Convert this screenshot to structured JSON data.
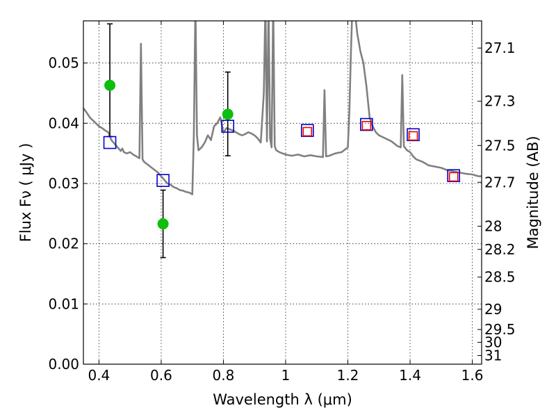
{
  "chart_data": {
    "type": "scatter",
    "xlabel": "Wavelength  λ (μm)",
    "ylabel": "Flux  Fν  ( μJy )",
    "ylabel_right": "Magnitude (AB)",
    "xlim": [
      0.35,
      1.63
    ],
    "ylim": [
      0.0,
      0.057
    ],
    "grid": true,
    "x_ticks": [
      0.4,
      0.6,
      0.8,
      1.0,
      1.2,
      1.4,
      1.6
    ],
    "x_tick_labels": [
      "0.4",
      "0.6",
      "0.8",
      "1",
      "1.2",
      "1.4",
      "1.6"
    ],
    "y_ticks": [
      0.0,
      0.01,
      0.02,
      0.03,
      0.04,
      0.05
    ],
    "y_tick_labels": [
      "0.00",
      "0.01",
      "0.02",
      "0.03",
      "0.04",
      "0.05"
    ],
    "right_ticks": [
      {
        "mag": 27.1,
        "label": "27.1"
      },
      {
        "mag": 27.3,
        "label": "27.3"
      },
      {
        "mag": 27.5,
        "label": "27.5"
      },
      {
        "mag": 27.7,
        "label": "27.7"
      },
      {
        "mag": 28.0,
        "label": "28"
      },
      {
        "mag": 28.2,
        "label": "28.2"
      },
      {
        "mag": 28.5,
        "label": "28.5"
      },
      {
        "mag": 29.0,
        "label": "29"
      },
      {
        "mag": 29.5,
        "label": "29.5"
      },
      {
        "mag": 30.0,
        "label": "30"
      },
      {
        "mag": 31.0,
        "label": "31"
      }
    ],
    "observed_points": {
      "color": "#0cbf0c",
      "points": [
        {
          "x": 0.435,
          "y": 0.0463,
          "err_low": 0.0378,
          "err_high": 0.0565
        },
        {
          "x": 0.606,
          "y": 0.0233,
          "err_low": 0.0177,
          "err_high": 0.0289
        },
        {
          "x": 0.814,
          "y": 0.0415,
          "err_low": 0.0346,
          "err_high": 0.0485
        }
      ]
    },
    "model_photometry": {
      "color": "#0000cc",
      "points": [
        {
          "x": 0.435,
          "y": 0.0368
        },
        {
          "x": 0.606,
          "y": 0.0305
        },
        {
          "x": 0.814,
          "y": 0.0395
        },
        {
          "x": 1.07,
          "y": 0.0388
        },
        {
          "x": 1.26,
          "y": 0.0398
        },
        {
          "x": 1.41,
          "y": 0.0381
        },
        {
          "x": 1.54,
          "y": 0.0313
        }
      ]
    },
    "ir_photometry": {
      "color": "#ee0000",
      "points": [
        {
          "x": 1.07,
          "y": 0.0386
        },
        {
          "x": 1.26,
          "y": 0.0396
        },
        {
          "x": 1.41,
          "y": 0.0379
        },
        {
          "x": 1.54,
          "y": 0.0311
        }
      ]
    },
    "spectrum": {
      "color": "#808080",
      "x": [
        0.35,
        0.36,
        0.37,
        0.38,
        0.39,
        0.4,
        0.41,
        0.42,
        0.43,
        0.44,
        0.45,
        0.46,
        0.47,
        0.475,
        0.48,
        0.49,
        0.5,
        0.51,
        0.52,
        0.53,
        0.535,
        0.54,
        0.545,
        0.55,
        0.56,
        0.57,
        0.58,
        0.59,
        0.6,
        0.61,
        0.62,
        0.63,
        0.64,
        0.65,
        0.66,
        0.67,
        0.68,
        0.69,
        0.7,
        0.705,
        0.71,
        0.715,
        0.72,
        0.73,
        0.74,
        0.75,
        0.76,
        0.77,
        0.78,
        0.79,
        0.8,
        0.81,
        0.82,
        0.83,
        0.84,
        0.85,
        0.86,
        0.87,
        0.88,
        0.89,
        0.9,
        0.91,
        0.92,
        0.93,
        0.935,
        0.94,
        0.945,
        0.95,
        0.955,
        0.96,
        0.965,
        0.97,
        0.98,
        0.99,
        1.0,
        1.02,
        1.04,
        1.06,
        1.08,
        1.1,
        1.12,
        1.125,
        1.13,
        1.14,
        1.16,
        1.18,
        1.2,
        1.205,
        1.21,
        1.215,
        1.22,
        1.23,
        1.24,
        1.25,
        1.26,
        1.27,
        1.28,
        1.29,
        1.3,
        1.32,
        1.34,
        1.36,
        1.37,
        1.375,
        1.38,
        1.39,
        1.4,
        1.41,
        1.42,
        1.44,
        1.46,
        1.48,
        1.5,
        1.52,
        1.54,
        1.56,
        1.58,
        1.6,
        1.62,
        1.63
      ],
      "y": [
        0.0425,
        0.0418,
        0.041,
        0.0405,
        0.04,
        0.0395,
        0.0392,
        0.0388,
        0.0385,
        0.0372,
        0.0366,
        0.036,
        0.0354,
        0.0358,
        0.0352,
        0.035,
        0.0352,
        0.0348,
        0.0345,
        0.0342,
        0.0532,
        0.034,
        0.0336,
        0.0334,
        0.033,
        0.0326,
        0.0322,
        0.0318,
        0.0312,
        0.0306,
        0.03,
        0.0298,
        0.0294,
        0.0292,
        0.0289,
        0.0288,
        0.0286,
        0.0285,
        0.0282,
        0.038,
        0.06,
        0.038,
        0.0355,
        0.036,
        0.0368,
        0.038,
        0.0372,
        0.0395,
        0.04,
        0.041,
        0.0385,
        0.0392,
        0.039,
        0.0388,
        0.0385,
        0.0382,
        0.038,
        0.0382,
        0.0385,
        0.0383,
        0.038,
        0.0375,
        0.0368,
        0.045,
        0.06,
        0.037,
        0.06,
        0.0375,
        0.036,
        0.06,
        0.0362,
        0.0355,
        0.0352,
        0.035,
        0.0348,
        0.0346,
        0.0348,
        0.0345,
        0.0347,
        0.0345,
        0.0344,
        0.0455,
        0.0345,
        0.0346,
        0.035,
        0.0352,
        0.036,
        0.042,
        0.052,
        0.06,
        0.06,
        0.055,
        0.052,
        0.05,
        0.046,
        0.041,
        0.0395,
        0.0385,
        0.038,
        0.0375,
        0.037,
        0.0362,
        0.036,
        0.048,
        0.0362,
        0.0355,
        0.0352,
        0.0345,
        0.034,
        0.0336,
        0.033,
        0.0328,
        0.0326,
        0.0322,
        0.032,
        0.0318,
        0.0316,
        0.0315,
        0.0312,
        0.0312
      ]
    }
  }
}
